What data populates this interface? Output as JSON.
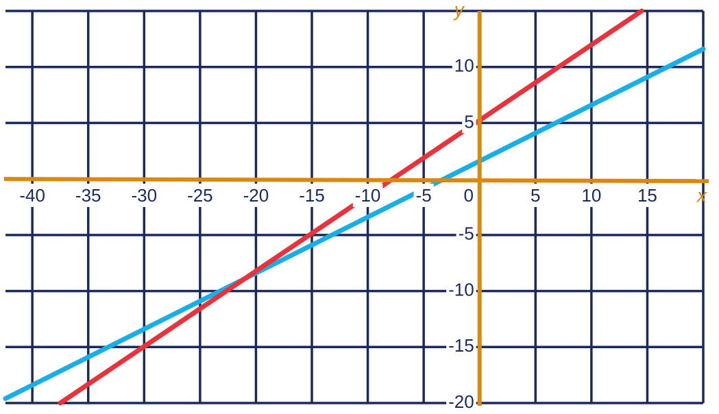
{
  "chart_data": {
    "type": "line",
    "x_label": "x",
    "y_label": "y",
    "xlim": [
      -42.4,
      20
    ],
    "ylim": [
      -20,
      15
    ],
    "xticks": [
      -40,
      -35,
      -30,
      -25,
      -20,
      -15,
      -10,
      -5,
      0,
      5,
      10,
      15
    ],
    "yticks": [
      -20,
      -15,
      -10,
      -5,
      5,
      10
    ],
    "grid": true,
    "series": [
      {
        "name": null,
        "color": "#19aee8",
        "x": [
          -42.4,
          20
        ],
        "values": [
          -19.6,
          11.6
        ]
      },
      {
        "name": null,
        "color": "#e8323c",
        "x": [
          -37.5,
          14.5
        ],
        "values": [
          -20,
          15
        ]
      }
    ]
  }
}
